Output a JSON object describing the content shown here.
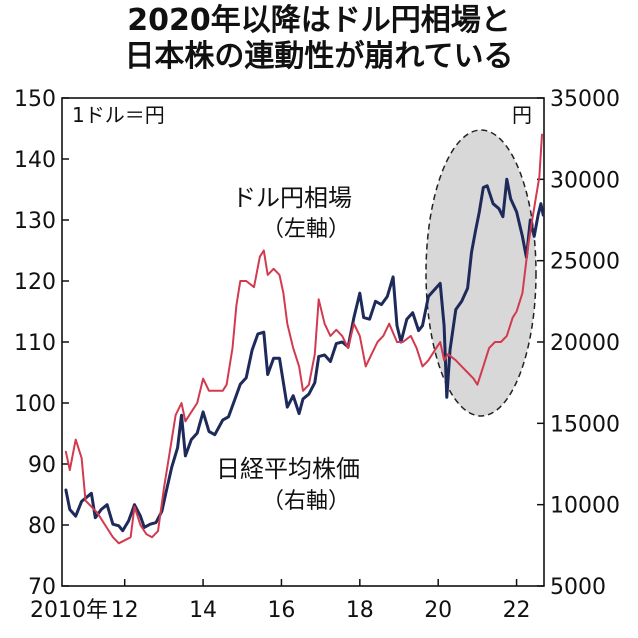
{
  "title_line1": "2020年以降はドル円相場と",
  "title_line2": "日本株の連動性が崩れている",
  "chart_data": {
    "type": "line",
    "title": "2020年以降はドル円相場と日本株の連動性が崩れている",
    "left_axis_unit": "1ドル＝円",
    "right_axis_unit": "円",
    "ylim_left": [
      70,
      150
    ],
    "ylim_right": [
      5000,
      35000
    ],
    "xlim": [
      2010.4,
      2022.7
    ],
    "left_ticks": [
      "150",
      "140",
      "130",
      "120",
      "110",
      "100",
      "90",
      "80",
      "70"
    ],
    "right_ticks": [
      "35000",
      "30000",
      "25000",
      "20000",
      "15000",
      "10000",
      "5000"
    ],
    "x_ticks": [
      {
        "value": 2010,
        "label": "2010年"
      },
      {
        "value": 2012,
        "label": "12"
      },
      {
        "value": 2014,
        "label": "14"
      },
      {
        "value": 2016,
        "label": "16"
      },
      {
        "value": 2018,
        "label": "18"
      },
      {
        "value": 2020,
        "label": "20"
      },
      {
        "value": 2022,
        "label": "22"
      }
    ],
    "series": [
      {
        "name": "ドル円相場",
        "note": "（左軸）",
        "axis": "left",
        "color": "#d23a4f",
        "points": [
          [
            2010.5,
            92
          ],
          [
            2010.6,
            89
          ],
          [
            2010.75,
            94
          ],
          [
            2010.9,
            91
          ],
          [
            2011.0,
            84
          ],
          [
            2011.15,
            83
          ],
          [
            2011.3,
            82
          ],
          [
            2011.5,
            80
          ],
          [
            2011.7,
            78
          ],
          [
            2011.85,
            77
          ],
          [
            2012.0,
            77.5
          ],
          [
            2012.15,
            78
          ],
          [
            2012.25,
            83
          ],
          [
            2012.4,
            80
          ],
          [
            2012.55,
            78.5
          ],
          [
            2012.7,
            78
          ],
          [
            2012.85,
            79
          ],
          [
            2013.0,
            86
          ],
          [
            2013.15,
            92
          ],
          [
            2013.3,
            98
          ],
          [
            2013.45,
            100
          ],
          [
            2013.55,
            97
          ],
          [
            2013.7,
            98.5
          ],
          [
            2013.85,
            100
          ],
          [
            2014.0,
            104
          ],
          [
            2014.15,
            102
          ],
          [
            2014.3,
            102
          ],
          [
            2014.5,
            102
          ],
          [
            2014.6,
            103
          ],
          [
            2014.75,
            109
          ],
          [
            2014.85,
            116
          ],
          [
            2014.95,
            120
          ],
          [
            2015.1,
            120
          ],
          [
            2015.3,
            119
          ],
          [
            2015.45,
            124
          ],
          [
            2015.55,
            125
          ],
          [
            2015.65,
            121
          ],
          [
            2015.8,
            122
          ],
          [
            2015.95,
            121
          ],
          [
            2016.05,
            118
          ],
          [
            2016.15,
            113
          ],
          [
            2016.3,
            109
          ],
          [
            2016.45,
            106
          ],
          [
            2016.55,
            102
          ],
          [
            2016.7,
            103
          ],
          [
            2016.85,
            108
          ],
          [
            2016.95,
            117
          ],
          [
            2017.1,
            113
          ],
          [
            2017.25,
            111
          ],
          [
            2017.4,
            112
          ],
          [
            2017.55,
            111
          ],
          [
            2017.7,
            109
          ],
          [
            2017.85,
            113
          ],
          [
            2018.0,
            111
          ],
          [
            2018.15,
            106
          ],
          [
            2018.3,
            108
          ],
          [
            2018.45,
            110
          ],
          [
            2018.6,
            111
          ],
          [
            2018.75,
            113
          ],
          [
            2018.95,
            110
          ],
          [
            2019.1,
            110
          ],
          [
            2019.3,
            111
          ],
          [
            2019.45,
            109
          ],
          [
            2019.6,
            106
          ],
          [
            2019.75,
            107
          ],
          [
            2019.95,
            109
          ],
          [
            2020.05,
            110
          ],
          [
            2020.15,
            107
          ],
          [
            2020.25,
            108
          ],
          [
            2020.45,
            107
          ],
          [
            2020.6,
            106
          ],
          [
            2020.75,
            105
          ],
          [
            2020.9,
            104
          ],
          [
            2021.0,
            103
          ],
          [
            2021.15,
            106
          ],
          [
            2021.3,
            109
          ],
          [
            2021.45,
            110
          ],
          [
            2021.6,
            110
          ],
          [
            2021.75,
            111
          ],
          [
            2021.9,
            114
          ],
          [
            2022.0,
            115
          ],
          [
            2022.15,
            118
          ],
          [
            2022.3,
            126
          ],
          [
            2022.4,
            130
          ],
          [
            2022.5,
            134
          ],
          [
            2022.58,
            137
          ],
          [
            2022.65,
            144
          ]
        ]
      },
      {
        "name": "日経平均株価",
        "note": "（右軸）",
        "axis": "right",
        "color": "#1e2a5a",
        "points": [
          [
            2010.5,
            10900
          ],
          [
            2010.6,
            9700
          ],
          [
            2010.75,
            9300
          ],
          [
            2010.9,
            10200
          ],
          [
            2011.0,
            10400
          ],
          [
            2011.15,
            10700
          ],
          [
            2011.25,
            9200
          ],
          [
            2011.4,
            9700
          ],
          [
            2011.55,
            10000
          ],
          [
            2011.7,
            8800
          ],
          [
            2011.85,
            8700
          ],
          [
            2011.95,
            8400
          ],
          [
            2012.1,
            9000
          ],
          [
            2012.25,
            10000
          ],
          [
            2012.4,
            9300
          ],
          [
            2012.5,
            8600
          ],
          [
            2012.65,
            8800
          ],
          [
            2012.8,
            8900
          ],
          [
            2012.95,
            9600
          ],
          [
            2013.05,
            10700
          ],
          [
            2013.2,
            12300
          ],
          [
            2013.35,
            13500
          ],
          [
            2013.45,
            15500
          ],
          [
            2013.55,
            13000
          ],
          [
            2013.7,
            14000
          ],
          [
            2013.85,
            14400
          ],
          [
            2014.0,
            15700
          ],
          [
            2014.15,
            14500
          ],
          [
            2014.3,
            14300
          ],
          [
            2014.5,
            15200
          ],
          [
            2014.65,
            15400
          ],
          [
            2014.8,
            16400
          ],
          [
            2014.95,
            17400
          ],
          [
            2015.1,
            17800
          ],
          [
            2015.25,
            19500
          ],
          [
            2015.4,
            20500
          ],
          [
            2015.55,
            20600
          ],
          [
            2015.65,
            18000
          ],
          [
            2015.8,
            19000
          ],
          [
            2015.95,
            19000
          ],
          [
            2016.05,
            17500
          ],
          [
            2016.15,
            16000
          ],
          [
            2016.3,
            16700
          ],
          [
            2016.45,
            15600
          ],
          [
            2016.55,
            16500
          ],
          [
            2016.7,
            16800
          ],
          [
            2016.85,
            17500
          ],
          [
            2016.95,
            19100
          ],
          [
            2017.1,
            19200
          ],
          [
            2017.25,
            18800
          ],
          [
            2017.4,
            19900
          ],
          [
            2017.55,
            20000
          ],
          [
            2017.7,
            19700
          ],
          [
            2017.85,
            21500
          ],
          [
            2018.0,
            23000
          ],
          [
            2018.1,
            21500
          ],
          [
            2018.25,
            21400
          ],
          [
            2018.4,
            22500
          ],
          [
            2018.55,
            22300
          ],
          [
            2018.7,
            22800
          ],
          [
            2018.85,
            24000
          ],
          [
            2018.95,
            21000
          ],
          [
            2019.05,
            20000
          ],
          [
            2019.2,
            21400
          ],
          [
            2019.35,
            21800
          ],
          [
            2019.5,
            20700
          ],
          [
            2019.6,
            21000
          ],
          [
            2019.75,
            22800
          ],
          [
            2019.9,
            23200
          ],
          [
            2020.05,
            23600
          ],
          [
            2020.15,
            21000
          ],
          [
            2020.22,
            16600
          ],
          [
            2020.3,
            19500
          ],
          [
            2020.45,
            22000
          ],
          [
            2020.6,
            22500
          ],
          [
            2020.75,
            23300
          ],
          [
            2020.85,
            25500
          ],
          [
            2020.95,
            26800
          ],
          [
            2021.05,
            28000
          ],
          [
            2021.15,
            29500
          ],
          [
            2021.25,
            29600
          ],
          [
            2021.4,
            28500
          ],
          [
            2021.55,
            28200
          ],
          [
            2021.65,
            27700
          ],
          [
            2021.75,
            30000
          ],
          [
            2021.85,
            28800
          ],
          [
            2022.0,
            28000
          ],
          [
            2022.15,
            26500
          ],
          [
            2022.25,
            25200
          ],
          [
            2022.35,
            27500
          ],
          [
            2022.45,
            26500
          ],
          [
            2022.55,
            27800
          ],
          [
            2022.62,
            28500
          ],
          [
            2022.68,
            27800
          ]
        ]
      }
    ],
    "annotation": "2020年以降を囲む楕円"
  }
}
